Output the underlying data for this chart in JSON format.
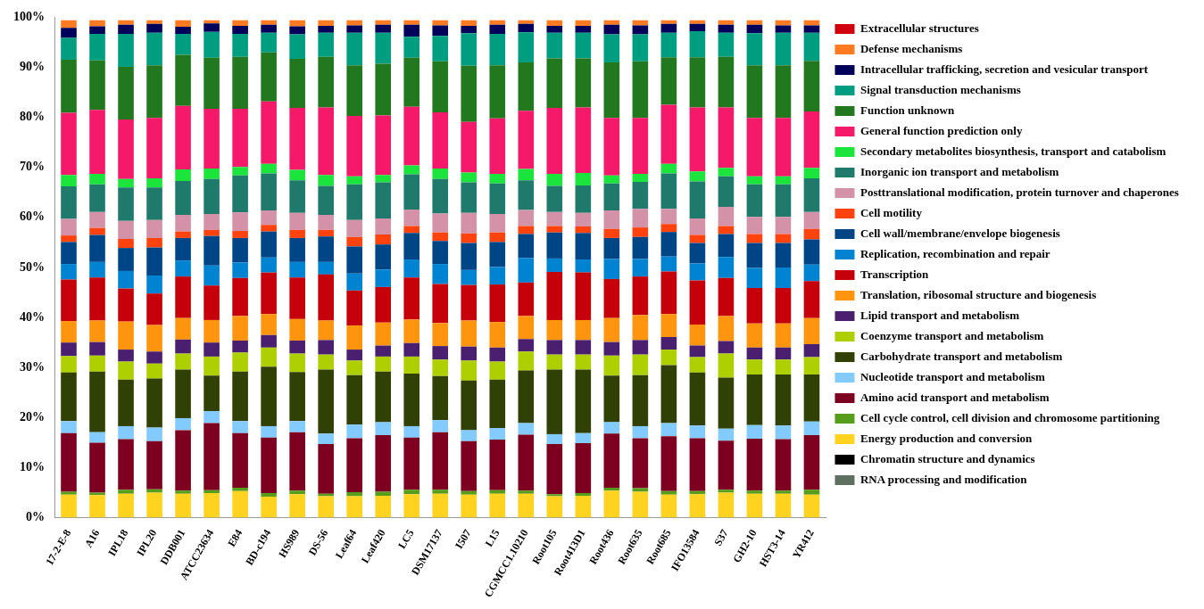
{
  "chart_data": {
    "type": "bar",
    "stacked": true,
    "legend": "right",
    "grid": false,
    "categories": [
      "17-2-E-8",
      "A16",
      "IPL18",
      "IPL20",
      "DDB001",
      "ATCC23634",
      "E84",
      "BD-c194",
      "HS989",
      "DS-56",
      "Leaf64",
      "Leaf420",
      "LC5",
      "DSM17137",
      "I507",
      "L15",
      "CGMCC1.10210",
      "Root105",
      "Root413D1",
      "Root436",
      "Root635",
      "Root685",
      "IFO13584",
      "S37",
      "GH2-10",
      "HST3-14",
      "YR412"
    ],
    "ylim": [
      0,
      100
    ],
    "yticks": [
      {
        "value": 0,
        "label": "0%"
      },
      {
        "value": 10,
        "label": "10%"
      },
      {
        "value": 20,
        "label": "20%"
      },
      {
        "value": 30,
        "label": "30%"
      },
      {
        "value": 40,
        "label": "40%"
      },
      {
        "value": 50,
        "label": "50%"
      },
      {
        "value": 60,
        "label": "60%"
      },
      {
        "value": 70,
        "label": "70%"
      },
      {
        "value": 80,
        "label": "80%"
      },
      {
        "value": 90,
        "label": "90%"
      },
      {
        "value": 100,
        "label": "100%"
      }
    ],
    "series": [
      {
        "name": "RNA processing and modification",
        "color": "#5f7060",
        "values": [
          null,
          null,
          null,
          null,
          null,
          null,
          null,
          null,
          null,
          null,
          null,
          null,
          null,
          null,
          null,
          null,
          null,
          null,
          null,
          null,
          null,
          null,
          null,
          null,
          null,
          null,
          null
        ]
      },
      {
        "name": "Chromatin structure and dynamics",
        "color": "#000000",
        "values": [
          null,
          null,
          null,
          null,
          null,
          null,
          null,
          null,
          null,
          null,
          null,
          null,
          null,
          null,
          null,
          null,
          null,
          null,
          null,
          null,
          null,
          null,
          null,
          null,
          null,
          null,
          null
        ]
      },
      {
        "name": "Energy production and conversion",
        "color": "#ffd320",
        "values": [
          4.6,
          4.5,
          4.8,
          5.0,
          4.8,
          4.9,
          5.3,
          4.2,
          4.7,
          4.3,
          4.3,
          4.4,
          4.7,
          4.8,
          4.6,
          4.8,
          4.8,
          4.3,
          4.4,
          5.4,
          5.2,
          4.6,
          4.7,
          5.0,
          4.8,
          4.8,
          4.6
        ]
      },
      {
        "name": "Cell cycle control, cell division and chromosome partitioning",
        "color": "#579d1c",
        "values": [
          0.6,
          0.5,
          0.8,
          0.7,
          0.6,
          0.6,
          0.7,
          0.7,
          0.7,
          0.5,
          0.8,
          0.8,
          0.9,
          0.8,
          0.7,
          0.7,
          0.6,
          0.4,
          0.5,
          0.6,
          0.7,
          0.7,
          0.6,
          0.6,
          0.6,
          0.6,
          1.0
        ]
      },
      {
        "name": "Amino acid transport and metabolism",
        "color": "#7e0021",
        "values": [
          11.7,
          10.0,
          10.1,
          9.6,
          12.1,
          13.4,
          10.9,
          11.1,
          11.7,
          9.9,
          10.8,
          11.3,
          10.4,
          11.5,
          10.0,
          10.1,
          11.2,
          10.0,
          10.0,
          10.8,
          10.0,
          11.0,
          10.6,
          9.8,
          10.4,
          10.3,
          10.9
        ]
      },
      {
        "name": "Nucleotide transport and metabolism",
        "color": "#83caff",
        "values": [
          2.4,
          2.1,
          2.6,
          2.7,
          2.4,
          2.4,
          2.4,
          2.3,
          2.2,
          2.1,
          2.7,
          2.6,
          2.3,
          2.4,
          2.2,
          2.3,
          2.3,
          2.0,
          2.0,
          2.3,
          2.4,
          2.6,
          2.5,
          2.4,
          2.7,
          2.7,
          2.7
        ]
      },
      {
        "name": "Carbohydrate transport and metabolism",
        "color": "#314004",
        "values": [
          9.7,
          12.1,
          9.3,
          9.8,
          9.7,
          7.1,
          9.9,
          11.9,
          9.8,
          12.8,
          9.9,
          10.1,
          10.5,
          8.8,
          9.9,
          9.7,
          10.5,
          12.9,
          12.7,
          9.3,
          10.2,
          11.6,
          10.6,
          10.2,
          10.1,
          10.2,
          9.4
        ]
      },
      {
        "name": "Coenzyme transport and metabolism",
        "color": "#aecf00",
        "values": [
          3.3,
          3.2,
          3.6,
          3.0,
          3.2,
          3.8,
          3.8,
          3.8,
          3.7,
          3.0,
          2.9,
          3.0,
          3.4,
          3.3,
          4.0,
          3.6,
          3.8,
          3.0,
          3.0,
          4.0,
          4.1,
          3.1,
          3.1,
          4.8,
          3.0,
          3.0,
          3.5
        ]
      },
      {
        "name": "Lipid transport and metabolism",
        "color": "#4b1f6f",
        "values": [
          2.7,
          2.7,
          2.4,
          2.4,
          2.8,
          2.8,
          2.4,
          2.5,
          2.6,
          2.9,
          2.2,
          2.2,
          2.7,
          2.7,
          2.8,
          2.8,
          2.5,
          2.9,
          2.9,
          2.7,
          2.9,
          2.5,
          2.3,
          2.5,
          2.4,
          2.4,
          2.6
        ]
      },
      {
        "name": "Translation, ribosomal structure and biogenesis",
        "color": "#ff950e",
        "values": [
          4.3,
          4.3,
          5.6,
          5.3,
          4.3,
          4.5,
          4.9,
          4.2,
          4.3,
          3.9,
          4.8,
          4.6,
          4.7,
          4.6,
          5.2,
          5.1,
          4.6,
          4.0,
          4.0,
          4.8,
          5.0,
          4.6,
          4.2,
          5.0,
          4.8,
          4.8,
          5.2
        ]
      },
      {
        "name": "Transcription",
        "color": "#c5000b",
        "values": [
          8.3,
          8.6,
          6.6,
          6.3,
          8.3,
          6.9,
          7.6,
          8.3,
          8.3,
          9.2,
          7.0,
          7.1,
          8.4,
          7.8,
          7.1,
          7.5,
          6.7,
          9.6,
          9.5,
          7.8,
          7.7,
          8.5,
          8.8,
          7.6,
          7.1,
          7.1,
          7.4
        ]
      },
      {
        "name": "Replication, recombination and repair",
        "color": "#0084d1",
        "values": [
          3.1,
          3.1,
          3.5,
          3.6,
          3.2,
          4.0,
          3.1,
          3.0,
          3.1,
          2.5,
          3.4,
          3.5,
          3.6,
          4.0,
          3.0,
          3.5,
          4.9,
          2.7,
          2.6,
          4.0,
          3.5,
          3.0,
          3.4,
          4.2,
          4.0,
          4.1,
          3.3
        ]
      },
      {
        "name": "Cell wall/membrane/envelope biogenesis",
        "color": "#004586",
        "values": [
          4.4,
          5.4,
          4.6,
          5.6,
          4.5,
          5.9,
          4.9,
          5.2,
          4.8,
          5.1,
          5.4,
          5.0,
          5.3,
          4.6,
          5.4,
          5.0,
          4.8,
          5.2,
          5.3,
          4.2,
          4.4,
          4.9,
          4.1,
          4.6,
          5.0,
          4.9,
          5.0
        ]
      },
      {
        "name": "Cell motility",
        "color": "#ff420e",
        "values": [
          1.3,
          1.4,
          1.8,
          1.9,
          1.3,
          1.2,
          1.4,
          1.3,
          1.6,
          1.3,
          1.9,
          2.0,
          1.4,
          1.7,
          1.9,
          1.9,
          1.6,
          1.3,
          1.3,
          1.8,
          1.9,
          1.6,
          1.6,
          1.6,
          1.8,
          1.8,
          2.1
        ]
      },
      {
        "name": "Posttranslational modification, protein turnover and chaperones",
        "color": "#d492a8",
        "values": [
          3.3,
          3.2,
          3.6,
          3.6,
          3.3,
          3.2,
          3.7,
          2.9,
          3.4,
          3.0,
          3.4,
          3.2,
          3.3,
          3.8,
          4.1,
          3.7,
          3.2,
          2.8,
          2.7,
          3.7,
          3.7,
          3.0,
          3.3,
          3.8,
          3.4,
          3.4,
          3.4
        ]
      },
      {
        "name": "Inorganic ion transport and metabolism",
        "color": "#1f7a6b",
        "values": [
          6.5,
          5.5,
          6.7,
          6.5,
          6.8,
          7.0,
          7.4,
          7.4,
          6.5,
          5.8,
          7.1,
          7.2,
          7.0,
          6.9,
          6.1,
          6.1,
          5.9,
          5.2,
          5.5,
          5.4,
          5.4,
          7.1,
          7.4,
          6.1,
          6.5,
          6.5,
          6.7
        ]
      },
      {
        "name": "Secondary metabolites biosynthesis, transport and catabolism",
        "color": "#1be43c",
        "values": [
          2.3,
          2.1,
          1.7,
          1.8,
          2.3,
          2.1,
          1.7,
          1.9,
          2.1,
          2.2,
          1.6,
          1.5,
          1.8,
          2.1,
          2.0,
          1.9,
          2.3,
          2.4,
          2.5,
          1.6,
          1.6,
          1.9,
          2.0,
          1.7,
          1.6,
          1.6,
          2.1
        ]
      },
      {
        "name": "General function prediction only",
        "color": "#f5196a",
        "values": [
          12.4,
          12.8,
          11.9,
          12.1,
          12.7,
          11.9,
          11.6,
          12.5,
          12.4,
          13.5,
          12.1,
          11.9,
          11.7,
          11.2,
          10.1,
          11.1,
          11.6,
          13.2,
          13.1,
          11.5,
          11.2,
          11.8,
          12.8,
          12.1,
          11.7,
          11.7,
          11.3
        ]
      },
      {
        "name": "Function unknown",
        "color": "#22781e",
        "values": [
          10.6,
          9.9,
          10.5,
          10.5,
          10.2,
          10.2,
          10.4,
          9.8,
          9.8,
          10.1,
          10.1,
          10.3,
          9.8,
          10.2,
          11.2,
          10.6,
          9.7,
          9.9,
          9.8,
          11.1,
          11.3,
          9.5,
          10.0,
          10.1,
          10.5,
          10.5,
          10.1
        ]
      },
      {
        "name": "Signal transduction mechanisms",
        "color": "#009e80",
        "values": [
          4.4,
          5.3,
          6.6,
          6.5,
          4.2,
          5.2,
          4.6,
          3.9,
          4.9,
          4.8,
          6.5,
          6.2,
          4.2,
          5.1,
          6.5,
          6.3,
          6.0,
          5.1,
          5.1,
          5.6,
          5.4,
          4.9,
          5.2,
          4.8,
          6.4,
          6.5,
          5.6
        ]
      },
      {
        "name": "Intracellular trafficking, secretion and vesicular transport",
        "color": "#00005a",
        "values": [
          2.0,
          1.5,
          1.8,
          1.8,
          1.4,
          1.7,
          1.6,
          1.6,
          1.6,
          1.4,
          1.5,
          1.6,
          2.4,
          2.1,
          1.5,
          1.8,
          1.7,
          1.4,
          1.4,
          1.9,
          1.8,
          1.8,
          1.5,
          1.6,
          1.7,
          1.5,
          1.5
        ]
      },
      {
        "name": "Defense mechanisms",
        "color": "#ff7a20",
        "values": [
          1.5,
          1.2,
          0.9,
          0.7,
          1.3,
          0.6,
          1.1,
          0.9,
          1.2,
          1.1,
          1.0,
          0.9,
          0.9,
          1.0,
          1.1,
          0.9,
          0.7,
          1.1,
          1.1,
          0.9,
          1.0,
          0.7,
          0.7,
          0.9,
          0.9,
          1.0,
          1.0
        ]
      },
      {
        "name": "Extracellular structures",
        "color": "#d0000f",
        "values": [
          null,
          null,
          null,
          null,
          null,
          null,
          null,
          null,
          null,
          null,
          null,
          null,
          null,
          null,
          null,
          null,
          null,
          null,
          null,
          null,
          null,
          null,
          null,
          null,
          null,
          null,
          null
        ]
      }
    ]
  }
}
